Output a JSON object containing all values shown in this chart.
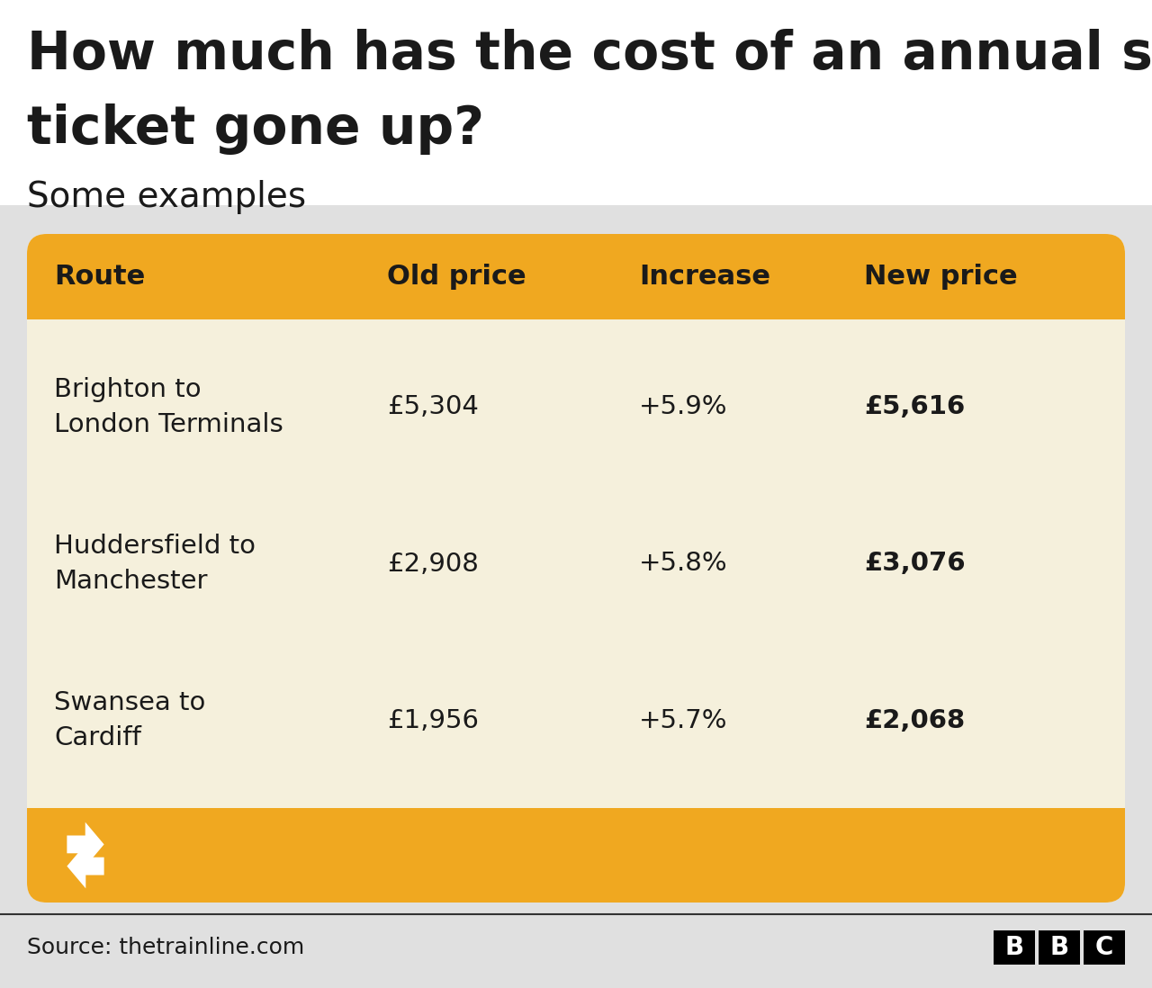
{
  "title_line1": "How much has the cost of an annual season",
  "title_line2": "ticket gone up?",
  "subtitle": "Some examples",
  "source": "Source: thetrainline.com",
  "page_bg_color": "#e0e0e0",
  "white_area_color": "#ffffff",
  "card_bg_color": "#f5f0dc",
  "header_bg_color": "#f0a820",
  "header_text_color": "#1a1a1a",
  "body_text_color": "#1a1a1a",
  "title_color": "#1a1a1a",
  "columns": [
    "Route",
    "Old price",
    "Increase",
    "New price"
  ],
  "rows": [
    {
      "route": "Brighton to\nLondon Terminals",
      "old_price": "£5,304",
      "increase": "+5.9%",
      "new_price": "£5,616"
    },
    {
      "route": "Huddersfield to\nManchester",
      "old_price": "£2,908",
      "increase": "+5.8%",
      "new_price": "£3,076"
    },
    {
      "route": "Swansea to\nCardiff",
      "old_price": "£1,956",
      "increase": "+5.7%",
      "new_price": "£2,068"
    }
  ],
  "footer_color": "#f0a820",
  "white_color": "#ffffff",
  "bbc_bg": "#000000",
  "separator_color": "#333333"
}
